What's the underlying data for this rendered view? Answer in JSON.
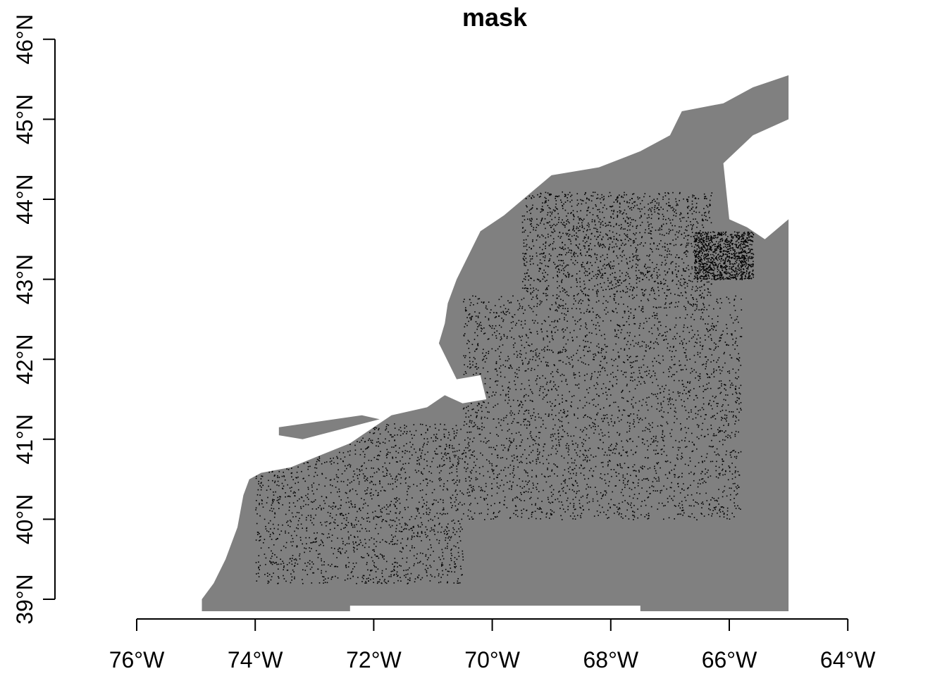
{
  "title": "mask",
  "x_axis": {
    "range": [
      -76,
      -64
    ],
    "ticks": [
      {
        "value": -76,
        "label": "76°W"
      },
      {
        "value": -74,
        "label": "74°W"
      },
      {
        "value": -72,
        "label": "72°W"
      },
      {
        "value": -70,
        "label": "70°W"
      },
      {
        "value": -68,
        "label": "68°W"
      },
      {
        "value": -66,
        "label": "66°W"
      },
      {
        "value": -64,
        "label": "64°W"
      }
    ]
  },
  "y_axis": {
    "range": [
      39,
      46
    ],
    "ticks": [
      {
        "value": 39,
        "label": "39°N"
      },
      {
        "value": 40,
        "label": "40°N"
      },
      {
        "value": 41,
        "label": "41°N"
      },
      {
        "value": 42,
        "label": "42°N"
      },
      {
        "value": 43,
        "label": "43°N"
      },
      {
        "value": 44,
        "label": "44°N"
      },
      {
        "value": 45,
        "label": "45°N"
      },
      {
        "value": 46,
        "label": "46°N"
      }
    ]
  },
  "colors": {
    "mask_fill": "#808080",
    "points": "#000000",
    "axis": "#000000",
    "background": "#ffffff"
  },
  "chart_data": {
    "type": "raster-map",
    "mask_region_lonlat": [
      [
        -74.9,
        38.85
      ],
      [
        -74.9,
        39.0
      ],
      [
        -74.7,
        39.2
      ],
      [
        -74.5,
        39.5
      ],
      [
        -74.3,
        39.9
      ],
      [
        -74.2,
        40.3
      ],
      [
        -74.1,
        40.5
      ],
      [
        -73.9,
        40.58
      ],
      [
        -73.4,
        40.65
      ],
      [
        -72.9,
        40.8
      ],
      [
        -72.4,
        40.95
      ],
      [
        -72.1,
        41.1
      ],
      [
        -71.7,
        41.3
      ],
      [
        -71.1,
        41.4
      ],
      [
        -70.8,
        41.55
      ],
      [
        -70.5,
        41.45
      ],
      [
        -70.1,
        41.5
      ],
      [
        -70.2,
        41.8
      ],
      [
        -70.6,
        41.75
      ],
      [
        -70.9,
        42.2
      ],
      [
        -70.8,
        42.45
      ],
      [
        -70.75,
        42.7
      ],
      [
        -70.6,
        43.0
      ],
      [
        -70.2,
        43.6
      ],
      [
        -69.8,
        43.8
      ],
      [
        -69.0,
        44.3
      ],
      [
        -68.2,
        44.4
      ],
      [
        -67.5,
        44.6
      ],
      [
        -67.0,
        44.8
      ],
      [
        -66.8,
        45.1
      ],
      [
        -66.1,
        45.2
      ],
      [
        -65.6,
        45.4
      ],
      [
        -65.0,
        45.55
      ],
      [
        -65.0,
        45.0
      ],
      [
        -65.6,
        44.8
      ],
      [
        -66.1,
        44.45
      ],
      [
        -66.0,
        43.75
      ],
      [
        -65.7,
        43.65
      ],
      [
        -65.4,
        43.5
      ],
      [
        -65.0,
        43.75
      ],
      [
        -65.0,
        38.85
      ],
      [
        -67.5,
        38.85
      ],
      [
        -67.5,
        38.92
      ],
      [
        -72.4,
        38.92
      ],
      [
        -72.4,
        38.85
      ],
      [
        -74.9,
        38.85
      ]
    ],
    "point_density_regions_lonlat": [
      {
        "lon": [
          -74.0,
          -70.5
        ],
        "lat": [
          39.2,
          41.2
        ],
        "weight": 0.6
      },
      {
        "lon": [
          -70.5,
          -65.8
        ],
        "lat": [
          40.0,
          42.8
        ],
        "weight": 1.0
      },
      {
        "lon": [
          -69.5,
          -66.3
        ],
        "lat": [
          42.8,
          44.1
        ],
        "weight": 0.5
      },
      {
        "lon": [
          -66.6,
          -65.6
        ],
        "lat": [
          43.0,
          43.6
        ],
        "weight": 0.35
      }
    ]
  }
}
